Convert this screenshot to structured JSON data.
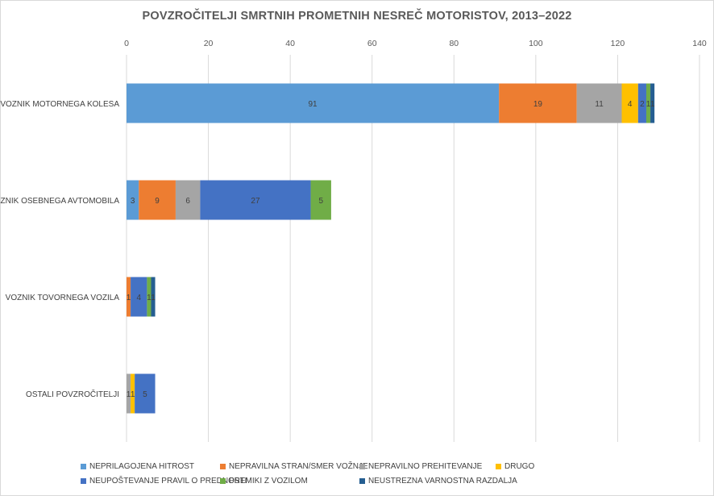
{
  "chart_data": {
    "type": "bar",
    "orientation": "horizontal",
    "stacked": true,
    "title": "POVZROČITELJI SMRTNIH PROMETNIH NESREČ MOTORISTOV, 2013–2022",
    "xlim": [
      0,
      140
    ],
    "xticks": [
      "0",
      "20",
      "40",
      "60",
      "80",
      "100",
      "120",
      "140"
    ],
    "grid": true,
    "legend_position": "bottom",
    "categories": [
      "VOZNIK MOTORNEGA KOLESA",
      "VOZNIK OSEBNEGA AVTOMOBILA",
      "VOZNIK TOVORNEGA VOZILA",
      "OSTALI POVZROČITELJI"
    ],
    "series": [
      {
        "name": "NEPRILAGOJENA HITROST",
        "color": "#5b9bd5",
        "values": [
          91,
          3,
          0,
          0
        ]
      },
      {
        "name": "NEPRAVILNA STRAN/SMER VOŽNJE",
        "color": "#ed7d31",
        "values": [
          19,
          9,
          1,
          0
        ]
      },
      {
        "name": "NEPRAVILNO PREHITEVANJE",
        "color": "#a5a5a5",
        "values": [
          11,
          6,
          0,
          1
        ]
      },
      {
        "name": "DRUGO",
        "color": "#ffc000",
        "values": [
          4,
          0,
          0,
          1
        ]
      },
      {
        "name": "NEUPOŠTEVANJE PRAVIL O PREDNOSTI",
        "color": "#4472c4",
        "values": [
          2,
          27,
          4,
          5
        ]
      },
      {
        "name": "PREMIKI Z VOZILOM",
        "color": "#70ad47",
        "values": [
          1,
          5,
          1,
          0
        ]
      },
      {
        "name": "NEUSTREZNA VARNOSTNA RAZDALJA",
        "color": "#255e91",
        "values": [
          1,
          0,
          1,
          0
        ]
      }
    ]
  }
}
